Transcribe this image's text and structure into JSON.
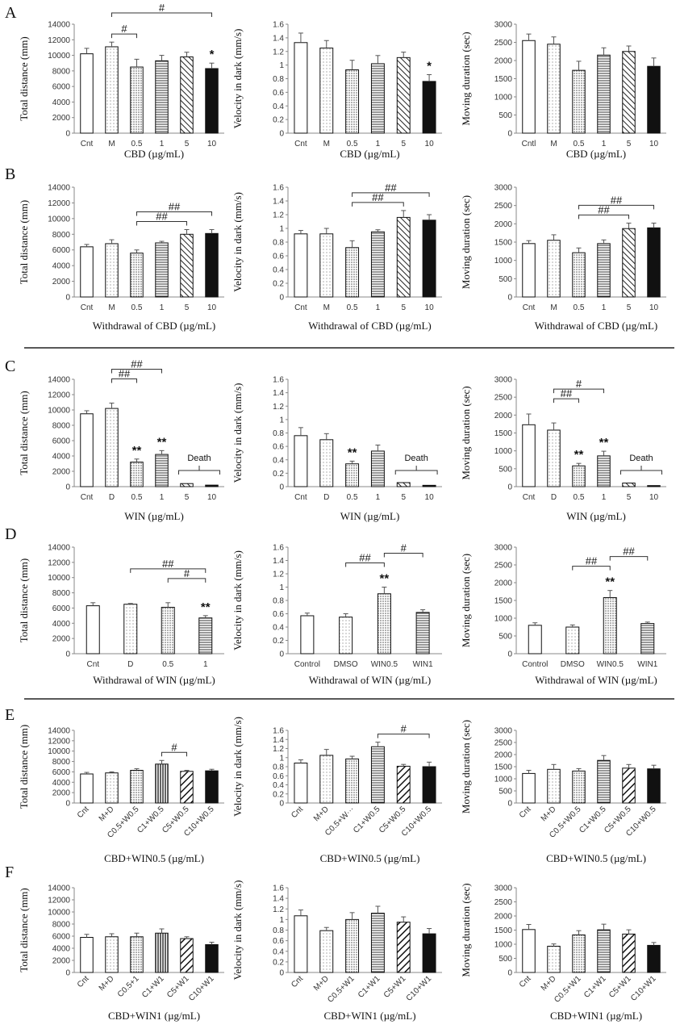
{
  "rows": [
    {
      "letter": "A",
      "divider_after": false
    },
    {
      "letter": "B",
      "divider_after": true
    },
    {
      "letter": "C",
      "divider_after": false
    },
    {
      "letter": "D",
      "divider_after": true
    },
    {
      "letter": "E",
      "divider_after": false
    },
    {
      "letter": "F",
      "divider_after": false
    }
  ],
  "chart_data": [
    {
      "type": "bar",
      "panel": "A",
      "col": 0,
      "ylabel": "Total distance (mm)",
      "xlabel": "CBD (µg/mL)",
      "ylim": [
        0,
        14000
      ],
      "yticks": [
        0,
        2000,
        4000,
        6000,
        8000,
        10000,
        12000,
        14000
      ],
      "categories": [
        "Cnt",
        "M",
        "0.5",
        "1",
        "5",
        "10"
      ],
      "values": [
        10200,
        11100,
        8500,
        9300,
        9800,
        8300
      ],
      "errors": [
        700,
        600,
        1000,
        700,
        600,
        700
      ],
      "patterns": [
        "white",
        "dots",
        "dots-dense",
        "hlines",
        "diag",
        "black"
      ],
      "stars": [
        "",
        "",
        "",
        "",
        "",
        "*"
      ],
      "brackets": [
        {
          "from": 1,
          "to": 2,
          "label": "#"
        },
        {
          "from": 1,
          "to": 5,
          "label": "#"
        }
      ]
    },
    {
      "type": "bar",
      "panel": "A",
      "col": 1,
      "ylabel": "Velocity in dark (mm/s)",
      "xlabel": "CBD (µg/mL)",
      "ylim": [
        0,
        1.6
      ],
      "yticks": [
        0,
        0.2,
        0.4,
        0.6,
        0.8,
        1,
        1.2,
        1.4,
        1.6
      ],
      "categories": [
        "Cnt",
        "M",
        "0.5",
        "1",
        "5",
        "10"
      ],
      "values": [
        1.33,
        1.25,
        0.93,
        1.02,
        1.11,
        0.76
      ],
      "errors": [
        0.14,
        0.11,
        0.14,
        0.12,
        0.08,
        0.1
      ],
      "patterns": [
        "white",
        "dots",
        "dots-dense",
        "hlines",
        "diag",
        "black"
      ],
      "stars": [
        "",
        "",
        "",
        "",
        "",
        "*"
      ],
      "brackets": []
    },
    {
      "type": "bar",
      "panel": "A",
      "col": 2,
      "ylabel": "Moving duration (sec)",
      "xlabel": "CBD (µg/mL)",
      "ylim": [
        0,
        3000
      ],
      "yticks": [
        0,
        500,
        1000,
        1500,
        2000,
        2500,
        3000
      ],
      "categories": [
        "Cntl",
        "M",
        "0.5",
        "1",
        "5",
        "10"
      ],
      "values": [
        2550,
        2450,
        1730,
        2150,
        2250,
        1840
      ],
      "errors": [
        180,
        200,
        250,
        200,
        150,
        230
      ],
      "patterns": [
        "white",
        "dots",
        "dots-dense",
        "hlines",
        "diag",
        "black"
      ],
      "stars": [
        "",
        "",
        "",
        "",
        "",
        ""
      ],
      "brackets": []
    },
    {
      "type": "bar",
      "panel": "B",
      "col": 0,
      "ylabel": "Total distance (mm)",
      "xlabel": "Withdrawal of CBD (µg/mL)",
      "ylim": [
        0,
        14000
      ],
      "yticks": [
        0,
        2000,
        4000,
        6000,
        8000,
        10000,
        12000,
        14000
      ],
      "categories": [
        "Cnt",
        "M",
        "0.5",
        "1",
        "5",
        "10"
      ],
      "values": [
        6400,
        6800,
        5600,
        6900,
        8000,
        8100
      ],
      "errors": [
        300,
        500,
        400,
        200,
        600,
        500
      ],
      "patterns": [
        "white",
        "dots",
        "dots-dense",
        "hlines",
        "diag",
        "black"
      ],
      "stars": [
        "",
        "",
        "",
        "",
        "",
        ""
      ],
      "brackets": [
        {
          "from": 2,
          "to": 4,
          "label": "##"
        },
        {
          "from": 2,
          "to": 5,
          "label": "##"
        }
      ]
    },
    {
      "type": "bar",
      "panel": "B",
      "col": 1,
      "ylabel": "Velocity in dark (mm/s)",
      "xlabel": "Withdrawal of CBD (µg/mL)",
      "ylim": [
        0,
        1.6
      ],
      "yticks": [
        0,
        0.2,
        0.4,
        0.6,
        0.8,
        1,
        1.2,
        1.4,
        1.6
      ],
      "categories": [
        "Cnt",
        "M",
        "0.5",
        "1",
        "5",
        "10"
      ],
      "values": [
        0.92,
        0.92,
        0.72,
        0.95,
        1.16,
        1.12
      ],
      "errors": [
        0.05,
        0.08,
        0.1,
        0.03,
        0.1,
        0.08
      ],
      "patterns": [
        "white",
        "dots",
        "dots-dense",
        "hlines",
        "diag",
        "black"
      ],
      "stars": [
        "",
        "",
        "",
        "",
        "",
        ""
      ],
      "brackets": [
        {
          "from": 2,
          "to": 4,
          "label": "##"
        },
        {
          "from": 2,
          "to": 5,
          "label": "##"
        }
      ]
    },
    {
      "type": "bar",
      "panel": "B",
      "col": 2,
      "ylabel": "Moving duration (sec)",
      "xlabel": "Withdrawal of CBD (µg/mL)",
      "ylim": [
        0,
        3000
      ],
      "yticks": [
        0,
        500,
        1000,
        1500,
        2000,
        2500,
        3000
      ],
      "categories": [
        "Cnt",
        "M",
        "0.5",
        "1",
        "5",
        "10"
      ],
      "values": [
        1460,
        1550,
        1210,
        1460,
        1870,
        1890
      ],
      "errors": [
        80,
        150,
        130,
        100,
        150,
        130
      ],
      "patterns": [
        "white",
        "dots",
        "dots-dense",
        "hlines",
        "diag",
        "black"
      ],
      "stars": [
        "",
        "",
        "",
        "",
        "",
        ""
      ],
      "brackets": [
        {
          "from": 2,
          "to": 4,
          "label": "##"
        },
        {
          "from": 2,
          "to": 5,
          "label": "##"
        }
      ]
    },
    {
      "type": "bar",
      "panel": "C",
      "col": 0,
      "ylabel": "Total distance (mm)",
      "xlabel": "WIN (µg/mL)",
      "ylim": [
        0,
        14000
      ],
      "yticks": [
        0,
        2000,
        4000,
        6000,
        8000,
        10000,
        12000,
        14000
      ],
      "categories": [
        "Cnt",
        "D",
        "0.5",
        "1",
        "5",
        "10"
      ],
      "values": [
        9500,
        10200,
        3200,
        4200,
        400,
        200
      ],
      "errors": [
        400,
        700,
        400,
        500,
        0,
        0
      ],
      "patterns": [
        "white",
        "dots",
        "dots-dense",
        "hlines",
        "diag",
        "black"
      ],
      "stars": [
        "",
        "",
        "**",
        "**",
        "",
        ""
      ],
      "brackets": [
        {
          "from": 1,
          "to": 2,
          "label": "##"
        },
        {
          "from": 1,
          "to": 3,
          "label": "##"
        }
      ],
      "death": {
        "from": 4,
        "to": 5,
        "label": "Death"
      }
    },
    {
      "type": "bar",
      "panel": "C",
      "col": 1,
      "ylabel": "Velocity in dark (mm/s)",
      "xlabel": "WIN (µg/mL)",
      "ylim": [
        0,
        1.6
      ],
      "yticks": [
        0,
        0.2,
        0.4,
        0.6,
        0.8,
        1,
        1.2,
        1.4,
        1.6
      ],
      "categories": [
        "Cnt",
        "D",
        "0.5",
        "1",
        "5",
        "10"
      ],
      "values": [
        0.76,
        0.7,
        0.34,
        0.53,
        0.06,
        0.02
      ],
      "errors": [
        0.12,
        0.09,
        0.04,
        0.09,
        0,
        0
      ],
      "patterns": [
        "white",
        "dots",
        "dots-dense",
        "hlines",
        "diag",
        "black"
      ],
      "stars": [
        "",
        "",
        "**",
        "",
        "",
        ""
      ],
      "brackets": [],
      "death": {
        "from": 4,
        "to": 5,
        "label": "Death"
      }
    },
    {
      "type": "bar",
      "panel": "C",
      "col": 2,
      "ylabel": "Moving duration (sec)",
      "xlabel": "WIN (µg/mL)",
      "ylim": [
        0,
        3000
      ],
      "yticks": [
        0,
        500,
        1000,
        1500,
        2000,
        2500,
        3000
      ],
      "categories": [
        "Cnt",
        "D",
        "0.5",
        "1",
        "5",
        "10"
      ],
      "values": [
        1730,
        1580,
        580,
        860,
        100,
        30
      ],
      "errors": [
        300,
        200,
        70,
        130,
        0,
        0
      ],
      "patterns": [
        "white",
        "dots",
        "dots-dense",
        "hlines",
        "diag",
        "black"
      ],
      "stars": [
        "",
        "",
        "**",
        "**",
        "",
        ""
      ],
      "brackets": [
        {
          "from": 1,
          "to": 2,
          "label": "##"
        },
        {
          "from": 1,
          "to": 3,
          "label": "#"
        }
      ],
      "death": {
        "from": 4,
        "to": 5,
        "label": "Death"
      }
    },
    {
      "type": "bar",
      "panel": "D",
      "col": 0,
      "ylabel": "Total distance (mm)",
      "xlabel": "Withdrawal of WIN (µg/mL)",
      "ylim": [
        0,
        14000
      ],
      "yticks": [
        0,
        2000,
        4000,
        6000,
        8000,
        10000,
        12000,
        14000
      ],
      "categories": [
        "Cnt",
        "D",
        "0.5",
        "1"
      ],
      "values": [
        6300,
        6500,
        6100,
        4700
      ],
      "errors": [
        400,
        100,
        600,
        300
      ],
      "patterns": [
        "white",
        "dots",
        "dots-dense",
        "hlines"
      ],
      "stars": [
        "",
        "",
        "",
        "**"
      ],
      "brackets": [
        {
          "from": 2,
          "to": 3,
          "label": "#"
        },
        {
          "from": 1,
          "to": 3,
          "label": "##"
        }
      ]
    },
    {
      "type": "bar",
      "panel": "D",
      "col": 1,
      "ylabel": "Velocity in dark (mm/s)",
      "xlabel": "Withdrawal of WIN (µg/mL)",
      "ylim": [
        0,
        1.6
      ],
      "yticks": [
        0,
        0.2,
        0.4,
        0.6,
        0.8,
        1,
        1.2,
        1.4,
        1.6
      ],
      "categories": [
        "Control",
        "DMSO",
        "WIN0.5",
        "WIN1"
      ],
      "values": [
        0.57,
        0.55,
        0.9,
        0.62
      ],
      "errors": [
        0.04,
        0.05,
        0.1,
        0.04
      ],
      "patterns": [
        "white",
        "dots",
        "dots-dense",
        "hlines"
      ],
      "stars": [
        "",
        "",
        "**",
        ""
      ],
      "brackets": [
        {
          "from": 1,
          "to": 2,
          "label": "##"
        },
        {
          "from": 2,
          "to": 3,
          "label": "#"
        }
      ]
    },
    {
      "type": "bar",
      "panel": "D",
      "col": 2,
      "ylabel": "Moving duration (sec)",
      "xlabel": "Withdrawal of WIN (µg/mL)",
      "ylim": [
        0,
        3000
      ],
      "yticks": [
        0,
        500,
        1000,
        1500,
        2000,
        2500,
        3000
      ],
      "categories": [
        "Control",
        "DMSO",
        "WIN0.5",
        "WIN1"
      ],
      "values": [
        800,
        750,
        1580,
        850
      ],
      "errors": [
        70,
        60,
        200,
        40
      ],
      "patterns": [
        "white",
        "dots",
        "dots-dense",
        "hlines"
      ],
      "stars": [
        "",
        "",
        "**",
        ""
      ],
      "brackets": [
        {
          "from": 1,
          "to": 2,
          "label": "##"
        },
        {
          "from": 2,
          "to": 3,
          "label": "##"
        }
      ]
    },
    {
      "type": "bar",
      "panel": "E",
      "col": 0,
      "ylabel": "Total distance (mm)",
      "xlabel": "CBD+WIN0.5 (µg/mL)",
      "ylim": [
        0,
        14000
      ],
      "yticks": [
        0,
        2000,
        4000,
        6000,
        8000,
        10000,
        12000,
        14000
      ],
      "categories": [
        "Cnt",
        "M+D",
        "C0.5+W0.5",
        "C1+W0.5",
        "C5+W0.5",
        "C10+W0.5"
      ],
      "values": [
        5600,
        5800,
        6300,
        7500,
        6100,
        6200
      ],
      "errors": [
        300,
        200,
        300,
        700,
        200,
        300
      ],
      "patterns": [
        "white",
        "dots",
        "dots-dense",
        "vlines",
        "diag-bold",
        "black"
      ],
      "stars": [
        "",
        "",
        "",
        "",
        "",
        ""
      ],
      "brackets": [
        {
          "from": 3,
          "to": 4,
          "label": "#"
        }
      ]
    },
    {
      "type": "bar",
      "panel": "E",
      "col": 1,
      "ylabel": "Velocity in dark (mm/s)",
      "xlabel": "CBD+WIN0.5 (µg/mL)",
      "ylim": [
        0,
        1.6
      ],
      "yticks": [
        0,
        0.2,
        0.4,
        0.6,
        0.8,
        1,
        1.2,
        1.4,
        1.6
      ],
      "categories": [
        "Cnt",
        "M+D",
        "C0.5+W···",
        "C1+W0.5",
        "C5+W0.5",
        "C10+W0.5"
      ],
      "values": [
        0.88,
        1.05,
        0.97,
        1.24,
        0.81,
        0.8
      ],
      "errors": [
        0.07,
        0.13,
        0.06,
        0.1,
        0.04,
        0.1
      ],
      "patterns": [
        "white",
        "dots",
        "dots-dense",
        "hlines",
        "diag-bold",
        "black"
      ],
      "stars": [
        "",
        "",
        "",
        "",
        "",
        ""
      ],
      "brackets": [
        {
          "from": 3,
          "to": 5,
          "label": "#"
        }
      ]
    },
    {
      "type": "bar",
      "panel": "E",
      "col": 2,
      "ylabel": "Moving duration (sec)",
      "xlabel": "CBD+WIN0.5 (µg/mL)",
      "ylim": [
        0,
        3000
      ],
      "yticks": [
        0,
        500,
        1000,
        1500,
        2000,
        2500,
        3000
      ],
      "categories": [
        "Cnt",
        "M+D",
        "C0.5+W0.5",
        "C1+W0.5",
        "C5+W0.5",
        "C10+W0.5"
      ],
      "values": [
        1220,
        1390,
        1320,
        1760,
        1440,
        1410
      ],
      "errors": [
        130,
        200,
        100,
        200,
        150,
        150
      ],
      "patterns": [
        "white",
        "dots",
        "dots-dense",
        "hlines",
        "diag-bold",
        "black"
      ],
      "stars": [
        "",
        "",
        "",
        "",
        "",
        ""
      ],
      "brackets": []
    },
    {
      "type": "bar",
      "panel": "F",
      "col": 0,
      "ylabel": "Total distance (mm)",
      "xlabel": "CBD+WIN1 (µg/mL)",
      "ylim": [
        0,
        14000
      ],
      "yticks": [
        0,
        2000,
        4000,
        6000,
        8000,
        10000,
        12000,
        14000
      ],
      "categories": [
        "Cnt",
        "M+D",
        "C0.5+1",
        "C1+W1",
        "C5+W1",
        "C10+W1"
      ],
      "values": [
        5800,
        5900,
        5900,
        6500,
        5600,
        4600
      ],
      "errors": [
        500,
        500,
        600,
        700,
        300,
        400
      ],
      "patterns": [
        "white",
        "dots",
        "dots-dense",
        "vlines",
        "diag-bold",
        "black"
      ],
      "stars": [
        "",
        "",
        "",
        "",
        "",
        ""
      ],
      "brackets": []
    },
    {
      "type": "bar",
      "panel": "F",
      "col": 1,
      "ylabel": "Velocity in dark (mm/s)",
      "xlabel": "CBD+WIN1 (µg/mL)",
      "ylim": [
        0,
        1.6
      ],
      "yticks": [
        0,
        0.2,
        0.4,
        0.6,
        0.8,
        1,
        1.2,
        1.4,
        1.6
      ],
      "categories": [
        "Cnt",
        "M+D",
        "C0.5+W1",
        "C1+W1",
        "C5+W1",
        "C10+W1"
      ],
      "values": [
        1.07,
        0.79,
        1.0,
        1.12,
        0.95,
        0.73
      ],
      "errors": [
        0.11,
        0.06,
        0.13,
        0.13,
        0.1,
        0.1
      ],
      "patterns": [
        "white",
        "dots",
        "dots-dense",
        "hlines",
        "diag-bold",
        "black"
      ],
      "stars": [
        "",
        "",
        "",
        "",
        "",
        ""
      ],
      "brackets": []
    },
    {
      "type": "bar",
      "panel": "F",
      "col": 2,
      "ylabel": "Moving duration (sec)",
      "xlabel": "CBD+WIN1 (µg/mL)",
      "ylim": [
        0,
        3000
      ],
      "yticks": [
        0,
        500,
        1000,
        1500,
        2000,
        2500,
        3000
      ],
      "categories": [
        "Cnt",
        "M+D",
        "C0.5+W1",
        "C1+W1",
        "C5+W1",
        "C10+W1"
      ],
      "values": [
        1520,
        930,
        1330,
        1510,
        1360,
        960
      ],
      "errors": [
        180,
        80,
        150,
        200,
        150,
        100
      ],
      "patterns": [
        "white",
        "dots",
        "dots-dense",
        "hlines",
        "diag-bold",
        "black"
      ],
      "stars": [
        "",
        "",
        "",
        "",
        "",
        ""
      ],
      "brackets": []
    }
  ]
}
